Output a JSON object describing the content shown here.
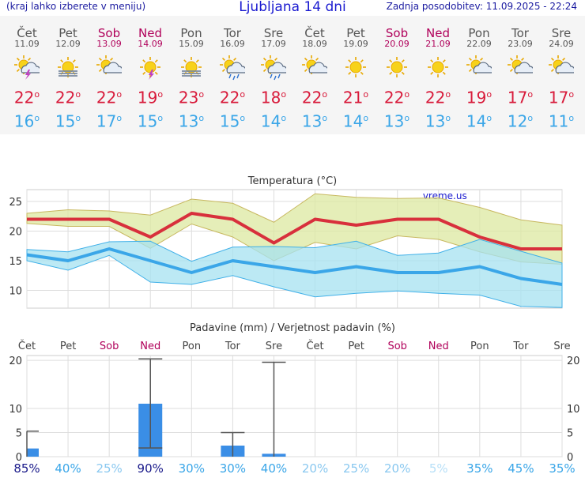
{
  "header": {
    "note": "(kraj lahko izberete v meniju)",
    "title": "Ljubljana 14 dni",
    "updated": "Zadnja posodobitev: 11.09.2025 - 22:24"
  },
  "days": [
    {
      "name": "Čet",
      "date": "11.09",
      "icon": "sun-cloud-storm-icon",
      "max": "22",
      "min": "16",
      "prob": "85%",
      "weekend": false
    },
    {
      "name": "Pet",
      "date": "12.09",
      "icon": "sun-fog-icon",
      "max": "22",
      "min": "15",
      "prob": "40%",
      "weekend": false
    },
    {
      "name": "Sob",
      "date": "13.09",
      "icon": "sun-cloud-icon",
      "max": "22",
      "min": "17",
      "prob": "25%",
      "weekend": true
    },
    {
      "name": "Ned",
      "date": "14.09",
      "icon": "sun-storm-icon",
      "max": "19",
      "min": "15",
      "prob": "90%",
      "weekend": true
    },
    {
      "name": "Pon",
      "date": "15.09",
      "icon": "sun-fog-icon",
      "max": "23",
      "min": "13",
      "prob": "30%",
      "weekend": false
    },
    {
      "name": "Tor",
      "date": "16.09",
      "icon": "sun-cloud-rain-icon",
      "max": "22",
      "min": "15",
      "prob": "30%",
      "weekend": false
    },
    {
      "name": "Sre",
      "date": "17.09",
      "icon": "sun-cloud-rain-icon",
      "max": "18",
      "min": "14",
      "prob": "40%",
      "weekend": false
    },
    {
      "name": "Čet",
      "date": "18.09",
      "icon": "sun-cloud-icon",
      "max": "22",
      "min": "13",
      "prob": "20%",
      "weekend": false
    },
    {
      "name": "Pet",
      "date": "19.09",
      "icon": "sun-icon",
      "max": "21",
      "min": "14",
      "prob": "25%",
      "weekend": false
    },
    {
      "name": "Sob",
      "date": "20.09",
      "icon": "sun-icon",
      "max": "22",
      "min": "13",
      "prob": "20%",
      "weekend": true
    },
    {
      "name": "Ned",
      "date": "21.09",
      "icon": "sun-icon",
      "max": "22",
      "min": "13",
      "prob": "5%",
      "weekend": true
    },
    {
      "name": "Pon",
      "date": "22.09",
      "icon": "sun-cloud-icon",
      "max": "19",
      "min": "14",
      "prob": "35%",
      "weekend": false
    },
    {
      "name": "Tor",
      "date": "23.09",
      "icon": "sun-cloud-icon",
      "max": "17",
      "min": "12",
      "prob": "45%",
      "weekend": false
    },
    {
      "name": "Sre",
      "date": "24.09",
      "icon": "sun-cloud-icon",
      "max": "17",
      "min": "11",
      "prob": "35%",
      "weekend": false
    }
  ],
  "chart_data": [
    {
      "type": "line",
      "title": "Temperatura (°C)",
      "watermark": "vreme.us",
      "categories": [
        "11.09",
        "12.09",
        "13.09",
        "14.09",
        "15.09",
        "16.09",
        "17.09",
        "18.09",
        "19.09",
        "20.09",
        "21.09",
        "22.09",
        "23.09",
        "24.09"
      ],
      "ylim": [
        7,
        27
      ],
      "yticks": [
        10,
        15,
        20,
        25
      ],
      "series": [
        {
          "name": "max",
          "color": "#d8303c",
          "values": [
            22,
            22,
            22,
            19,
            23,
            22,
            18,
            22,
            21,
            22,
            22,
            19,
            17,
            17
          ]
        },
        {
          "name": "min",
          "color": "#3aa6e8",
          "values": [
            16,
            15,
            17,
            15,
            13,
            15,
            14,
            13,
            14,
            13,
            13,
            14,
            12,
            11
          ]
        },
        {
          "name": "max_upper",
          "color": "#dce8a0",
          "values": [
            23,
            23.6,
            23.4,
            22.7,
            25.4,
            24.7,
            21.5,
            26.3,
            25.7,
            25.5,
            25.6,
            24,
            21.9,
            21
          ]
        },
        {
          "name": "max_lower",
          "color": "#dce8a0",
          "values": [
            21.3,
            20.8,
            20.8,
            17.1,
            21.2,
            19,
            15,
            18.1,
            17,
            19.2,
            18.6,
            16.5,
            14.8,
            14.4
          ]
        },
        {
          "name": "min_upper",
          "color": "#a6e2f0",
          "values": [
            16.9,
            16.5,
            18.2,
            18.3,
            14.9,
            17.3,
            17.4,
            17.2,
            18.3,
            15.9,
            16.3,
            18.6,
            16.6,
            14.6
          ]
        },
        {
          "name": "min_lower",
          "color": "#a6e2f0",
          "values": [
            15,
            13.4,
            15.9,
            11.4,
            11,
            12.5,
            10.6,
            8.9,
            9.5,
            9.9,
            9.5,
            9.2,
            7.3,
            7.1
          ]
        }
      ]
    },
    {
      "type": "bar",
      "title": "Padavine (mm) / Verjetnost padavin (%)",
      "categories": [
        "Čet",
        "Pet",
        "Sob",
        "Ned",
        "Pon",
        "Tor",
        "Sre",
        "Čet",
        "Pet",
        "Sob",
        "Ned",
        "Pon",
        "Tor",
        "Sre"
      ],
      "weekend": [
        false,
        false,
        true,
        true,
        false,
        false,
        false,
        false,
        false,
        true,
        true,
        false,
        false,
        false
      ],
      "ylim": [
        0,
        21
      ],
      "yticks": [
        0,
        5,
        10,
        20
      ],
      "color": "#3a8ee6",
      "values": [
        1.7,
        0,
        0,
        11,
        0,
        2.3,
        0.6,
        0,
        0,
        0,
        0,
        0,
        0,
        0
      ],
      "range_low": [
        0,
        0,
        0,
        1.8,
        0,
        0,
        0,
        0,
        0,
        0,
        0,
        0,
        0,
        0
      ],
      "range_high": [
        5.3,
        0,
        0,
        20.3,
        0,
        5,
        19.6,
        0,
        0,
        0,
        0,
        0,
        0,
        0
      ],
      "probability": [
        85,
        40,
        25,
        90,
        30,
        30,
        40,
        20,
        25,
        20,
        5,
        35,
        45,
        35
      ]
    }
  ]
}
